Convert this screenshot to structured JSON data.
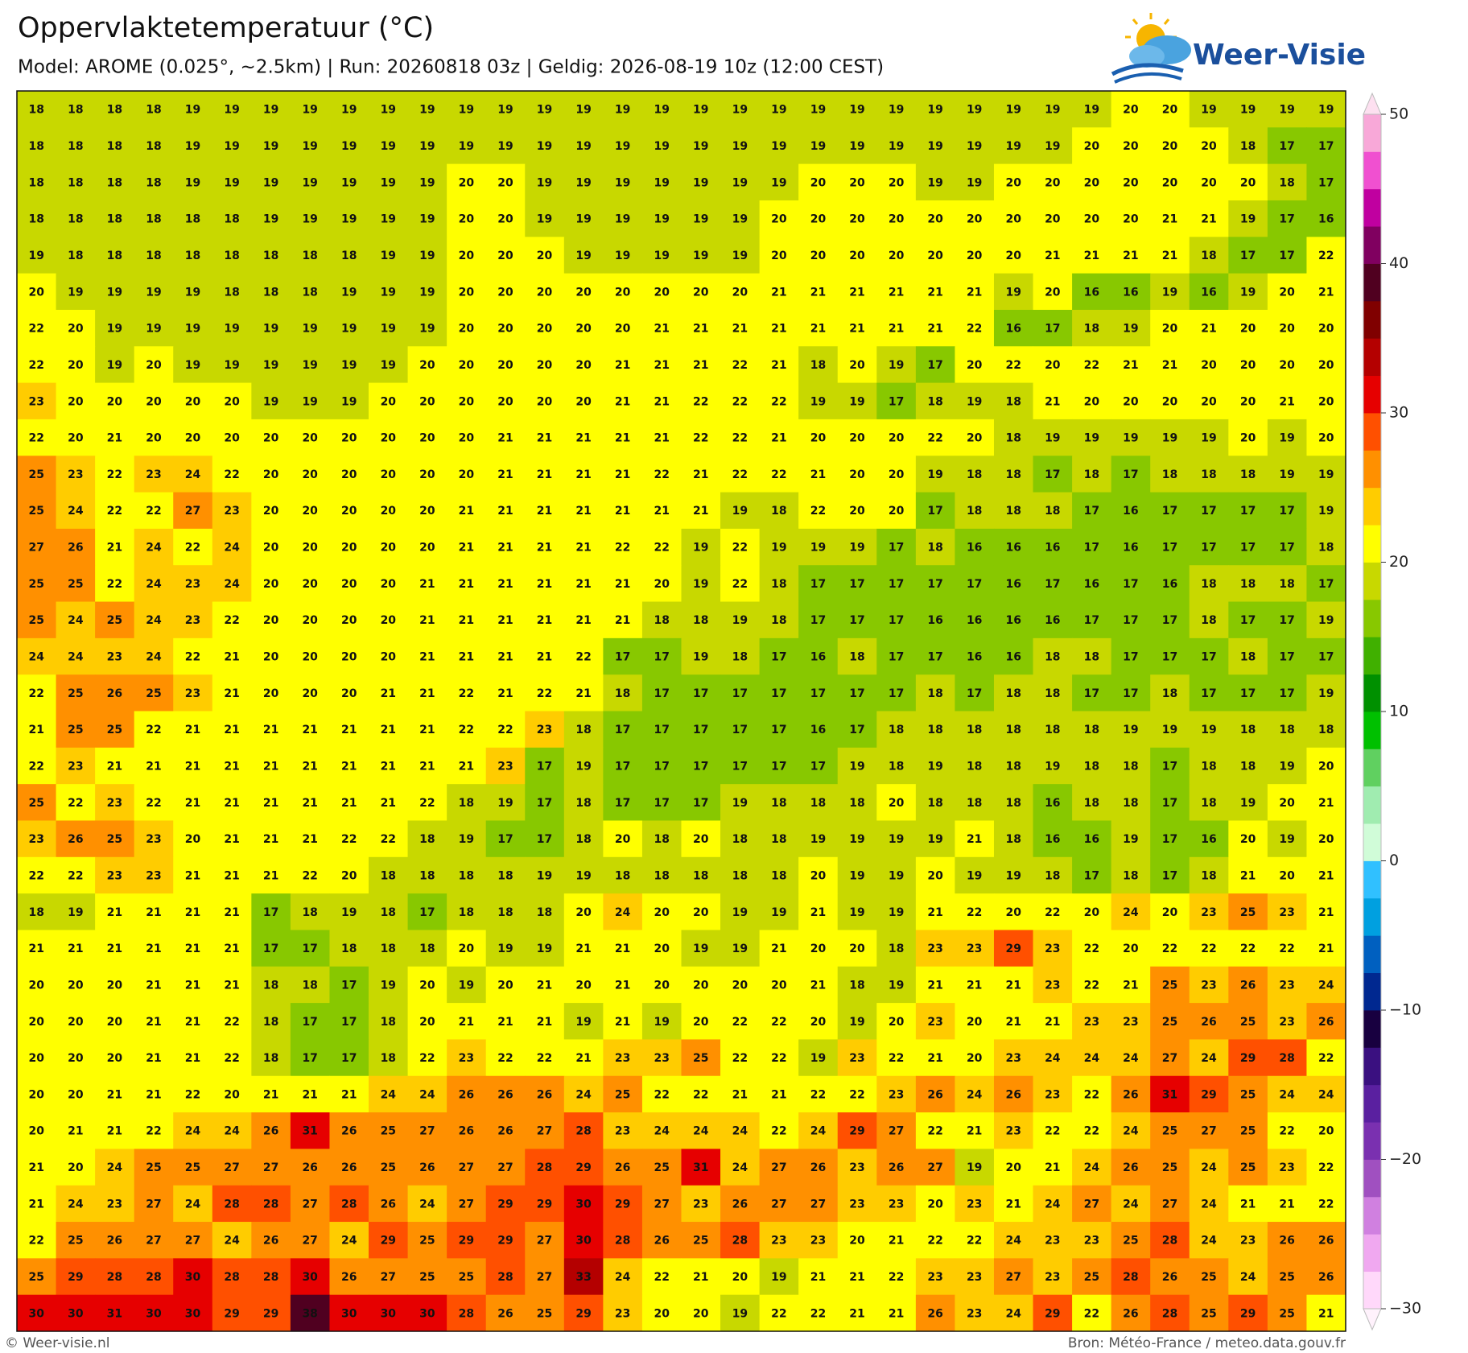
{
  "header": {
    "title": "Oppervlaktetemperatuur (°C)",
    "subtitle": "Model: AROME (0.025°, ~2.5km)  |  Run: 20260818 03z  |  Geldig: 2026-08-19 10z (12:00 CEST)"
  },
  "logo": "Weer-Visie",
  "grid": {
    "rows": [
      [
        18,
        18,
        18,
        18,
        19,
        19,
        19,
        19,
        19,
        19,
        19,
        19,
        19,
        19,
        19,
        19,
        19,
        19,
        19,
        19,
        19,
        19,
        19,
        19,
        19,
        19,
        19,
        19,
        20,
        20,
        19,
        19,
        19,
        19
      ],
      [
        18,
        18,
        18,
        18,
        19,
        19,
        19,
        19,
        19,
        19,
        19,
        19,
        19,
        19,
        19,
        19,
        19,
        19,
        19,
        19,
        19,
        19,
        19,
        19,
        19,
        19,
        19,
        20,
        20,
        20,
        20,
        18,
        17,
        17
      ],
      [
        18,
        18,
        18,
        18,
        19,
        19,
        19,
        19,
        19,
        19,
        19,
        20,
        20,
        19,
        19,
        19,
        19,
        19,
        19,
        19,
        20,
        20,
        20,
        19,
        19,
        20,
        20,
        20,
        20,
        20,
        20,
        20,
        18,
        17
      ],
      [
        18,
        18,
        18,
        18,
        18,
        18,
        19,
        19,
        19,
        19,
        19,
        20,
        20,
        19,
        19,
        19,
        19,
        19,
        19,
        20,
        20,
        20,
        20,
        20,
        20,
        20,
        20,
        20,
        20,
        21,
        21,
        19,
        17,
        16
      ],
      [
        19,
        18,
        18,
        18,
        18,
        18,
        18,
        18,
        18,
        19,
        19,
        20,
        20,
        20,
        19,
        19,
        19,
        19,
        19,
        20,
        20,
        20,
        20,
        20,
        20,
        20,
        21,
        21,
        21,
        21,
        18,
        17,
        17,
        22
      ],
      [
        20,
        19,
        19,
        19,
        19,
        18,
        18,
        18,
        19,
        19,
        19,
        20,
        20,
        20,
        20,
        20,
        20,
        20,
        20,
        21,
        21,
        21,
        21,
        21,
        21,
        19,
        20,
        16,
        16,
        19,
        16,
        19,
        20,
        21
      ],
      [
        22,
        20,
        19,
        19,
        19,
        19,
        19,
        19,
        19,
        19,
        19,
        20,
        20,
        20,
        20,
        20,
        21,
        21,
        21,
        21,
        21,
        21,
        21,
        21,
        22,
        16,
        17,
        18,
        19,
        20,
        21,
        20,
        20,
        20
      ],
      [
        22,
        20,
        19,
        20,
        19,
        19,
        19,
        19,
        19,
        19,
        20,
        20,
        20,
        20,
        20,
        21,
        21,
        21,
        22,
        21,
        18,
        20,
        19,
        17,
        20,
        22,
        20,
        22,
        21,
        21,
        20,
        20,
        20,
        20
      ],
      [
        23,
        20,
        20,
        20,
        20,
        20,
        19,
        19,
        19,
        20,
        20,
        20,
        20,
        20,
        20,
        21,
        21,
        22,
        22,
        22,
        19,
        19,
        17,
        18,
        19,
        18,
        21,
        20,
        20,
        20,
        20,
        20,
        21,
        20
      ],
      [
        22,
        20,
        21,
        20,
        20,
        20,
        20,
        20,
        20,
        20,
        20,
        20,
        21,
        21,
        21,
        21,
        21,
        22,
        22,
        21,
        20,
        20,
        20,
        22,
        20,
        18,
        19,
        19,
        19,
        19,
        19,
        20,
        19,
        20
      ],
      [
        25,
        23,
        22,
        23,
        24,
        22,
        20,
        20,
        20,
        20,
        20,
        20,
        21,
        21,
        21,
        21,
        22,
        21,
        22,
        22,
        21,
        20,
        20,
        19,
        18,
        18,
        17,
        18,
        17,
        18,
        18,
        18,
        19,
        19
      ],
      [
        25,
        24,
        22,
        22,
        27,
        23,
        20,
        20,
        20,
        20,
        20,
        21,
        21,
        21,
        21,
        21,
        21,
        21,
        19,
        18,
        22,
        20,
        20,
        17,
        18,
        18,
        18,
        17,
        16,
        17,
        17,
        17,
        17,
        19
      ],
      [
        27,
        26,
        21,
        24,
        22,
        24,
        20,
        20,
        20,
        20,
        20,
        21,
        21,
        21,
        21,
        22,
        22,
        19,
        22,
        19,
        19,
        19,
        17,
        18,
        16,
        16,
        16,
        17,
        16,
        17,
        17,
        17,
        17,
        18
      ],
      [
        25,
        25,
        22,
        24,
        23,
        24,
        20,
        20,
        20,
        20,
        21,
        21,
        21,
        21,
        21,
        21,
        20,
        19,
        22,
        18,
        17,
        17,
        17,
        17,
        17,
        16,
        17,
        16,
        17,
        16,
        18,
        18,
        18,
        17
      ],
      [
        25,
        24,
        25,
        24,
        23,
        22,
        20,
        20,
        20,
        20,
        21,
        21,
        21,
        21,
        21,
        21,
        18,
        18,
        19,
        18,
        17,
        17,
        17,
        16,
        16,
        16,
        16,
        17,
        17,
        17,
        18,
        17,
        17,
        19
      ],
      [
        24,
        24,
        23,
        24,
        22,
        21,
        20,
        20,
        20,
        20,
        21,
        21,
        21,
        21,
        22,
        17,
        17,
        19,
        18,
        17,
        16,
        18,
        17,
        17,
        16,
        16,
        18,
        18,
        17,
        17,
        17,
        18,
        17,
        17
      ],
      [
        22,
        25,
        26,
        25,
        23,
        21,
        20,
        20,
        20,
        21,
        21,
        22,
        21,
        22,
        21,
        18,
        17,
        17,
        17,
        17,
        17,
        17,
        17,
        18,
        17,
        18,
        18,
        17,
        17,
        18,
        17,
        17,
        17,
        19
      ],
      [
        21,
        25,
        25,
        22,
        21,
        21,
        21,
        21,
        21,
        21,
        21,
        22,
        22,
        23,
        18,
        17,
        17,
        17,
        17,
        17,
        16,
        17,
        18,
        18,
        18,
        18,
        18,
        18,
        19,
        19,
        19,
        18,
        18,
        18
      ],
      [
        22,
        23,
        21,
        21,
        21,
        21,
        21,
        21,
        21,
        21,
        21,
        21,
        23,
        17,
        19,
        17,
        17,
        17,
        17,
        17,
        17,
        19,
        18,
        19,
        18,
        18,
        19,
        18,
        18,
        17,
        18,
        18,
        19,
        20
      ],
      [
        25,
        22,
        23,
        22,
        21,
        21,
        21,
        21,
        21,
        21,
        22,
        18,
        19,
        17,
        18,
        17,
        17,
        17,
        19,
        18,
        18,
        18,
        20,
        18,
        18,
        18,
        16,
        18,
        18,
        17,
        18,
        19,
        20,
        21
      ],
      [
        23,
        26,
        25,
        23,
        20,
        21,
        21,
        21,
        22,
        22,
        18,
        19,
        17,
        17,
        18,
        20,
        18,
        20,
        18,
        18,
        19,
        19,
        19,
        19,
        21,
        18,
        16,
        16,
        19,
        17,
        16,
        20,
        19,
        20
      ],
      [
        22,
        22,
        23,
        23,
        21,
        21,
        21,
        22,
        20,
        18,
        18,
        18,
        18,
        19,
        19,
        18,
        18,
        18,
        18,
        18,
        20,
        19,
        19,
        20,
        19,
        19,
        18,
        17,
        18,
        17,
        18,
        21,
        20,
        21
      ],
      [
        18,
        19,
        21,
        21,
        21,
        21,
        17,
        18,
        19,
        18,
        17,
        18,
        18,
        18,
        20,
        24,
        20,
        20,
        19,
        19,
        21,
        19,
        19,
        21,
        22,
        20,
        22,
        20,
        24,
        20,
        23,
        25,
        23,
        21
      ],
      [
        21,
        21,
        21,
        21,
        21,
        21,
        17,
        17,
        18,
        18,
        18,
        20,
        19,
        19,
        21,
        21,
        20,
        19,
        19,
        21,
        20,
        20,
        18,
        23,
        23,
        29,
        23,
        22,
        20,
        22,
        22,
        22,
        22,
        21
      ],
      [
        20,
        20,
        20,
        21,
        21,
        21,
        18,
        18,
        17,
        19,
        20,
        19,
        20,
        21,
        20,
        21,
        20,
        20,
        20,
        20,
        21,
        18,
        19,
        21,
        21,
        21,
        23,
        22,
        21,
        25,
        23,
        26,
        23,
        24
      ],
      [
        20,
        20,
        20,
        21,
        21,
        22,
        18,
        17,
        17,
        18,
        20,
        21,
        21,
        21,
        19,
        21,
        19,
        20,
        22,
        22,
        20,
        19,
        20,
        23,
        20,
        21,
        21,
        23,
        23,
        25,
        26,
        25,
        23,
        26
      ],
      [
        20,
        20,
        20,
        21,
        21,
        22,
        18,
        17,
        17,
        18,
        22,
        23,
        22,
        22,
        21,
        23,
        23,
        25,
        22,
        22,
        19,
        23,
        22,
        21,
        20,
        23,
        24,
        24,
        24,
        27,
        24,
        29,
        28,
        22
      ],
      [
        20,
        20,
        21,
        21,
        22,
        20,
        21,
        21,
        21,
        24,
        24,
        26,
        26,
        26,
        24,
        25,
        22,
        22,
        21,
        21,
        22,
        22,
        23,
        26,
        24,
        26,
        23,
        22,
        26,
        31,
        29,
        25,
        24,
        24
      ],
      [
        20,
        21,
        21,
        22,
        24,
        24,
        26,
        31,
        26,
        25,
        27,
        26,
        26,
        27,
        28,
        23,
        24,
        24,
        24,
        22,
        24,
        29,
        27,
        22,
        21,
        23,
        22,
        22,
        24,
        25,
        27,
        25,
        22,
        20
      ],
      [
        21,
        20,
        24,
        25,
        25,
        27,
        27,
        26,
        26,
        25,
        26,
        27,
        27,
        28,
        29,
        26,
        25,
        31,
        24,
        27,
        26,
        23,
        26,
        27,
        19,
        20,
        21,
        24,
        26,
        25,
        24,
        25,
        23,
        22
      ],
      [
        21,
        24,
        23,
        27,
        24,
        28,
        28,
        27,
        28,
        26,
        24,
        27,
        29,
        29,
        30,
        29,
        27,
        23,
        26,
        27,
        27,
        23,
        23,
        20,
        23,
        21,
        24,
        27,
        24,
        27,
        24,
        21,
        21,
        22
      ],
      [
        22,
        25,
        26,
        27,
        27,
        24,
        26,
        27,
        24,
        29,
        25,
        29,
        29,
        27,
        30,
        28,
        26,
        25,
        28,
        23,
        23,
        20,
        21,
        22,
        22,
        24,
        23,
        23,
        25,
        28,
        24,
        23,
        26,
        26
      ],
      [
        25,
        29,
        28,
        28,
        30,
        28,
        28,
        30,
        26,
        27,
        25,
        25,
        28,
        27,
        33,
        24,
        22,
        21,
        20,
        19,
        21,
        21,
        22,
        23,
        23,
        27,
        23,
        25,
        28,
        26,
        25,
        24,
        25,
        26
      ],
      [
        30,
        30,
        31,
        30,
        30,
        29,
        29,
        38,
        30,
        30,
        30,
        28,
        26,
        25,
        29,
        23,
        20,
        20,
        19,
        22,
        22,
        21,
        21,
        26,
        23,
        24,
        29,
        22,
        26,
        28,
        25,
        29,
        25,
        21
      ]
    ]
  },
  "colorbar": {
    "lim": [
      -30,
      50
    ],
    "ticks": [
      {
        "value": -30,
        "label": "−30"
      },
      {
        "value": -20,
        "label": "−20"
      },
      {
        "value": -10,
        "label": "−10"
      },
      0,
      10,
      20,
      30,
      40,
      50
    ],
    "colors": [
      "#ffd8fa",
      "#f0a8f0",
      "#d080e0",
      "#a050c0",
      "#7a30b0",
      "#5a20a0",
      "#3a1080",
      "#180040",
      "#002890",
      "#0060c0",
      "#00a0e0",
      "#30c0ff",
      "#d0fcd8",
      "#a0ecb0",
      "#60d060",
      "#00c000",
      "#009000",
      "#40b000",
      "#88c800",
      "#c8d800",
      "#ffff00",
      "#ffcc00",
      "#ff9000",
      "#ff5000",
      "#e60000",
      "#b40000",
      "#800000",
      "#500020",
      "#800060",
      "#c000a0",
      "#f050d0",
      "#f8a8d8"
    ],
    "under_color": "#fff2fc",
    "over_color": "#fde0f0"
  },
  "footer": {
    "left": "© Weer-visie.nl",
    "right": "Bron: Météo-France / meteo.data.gouv.fr"
  }
}
